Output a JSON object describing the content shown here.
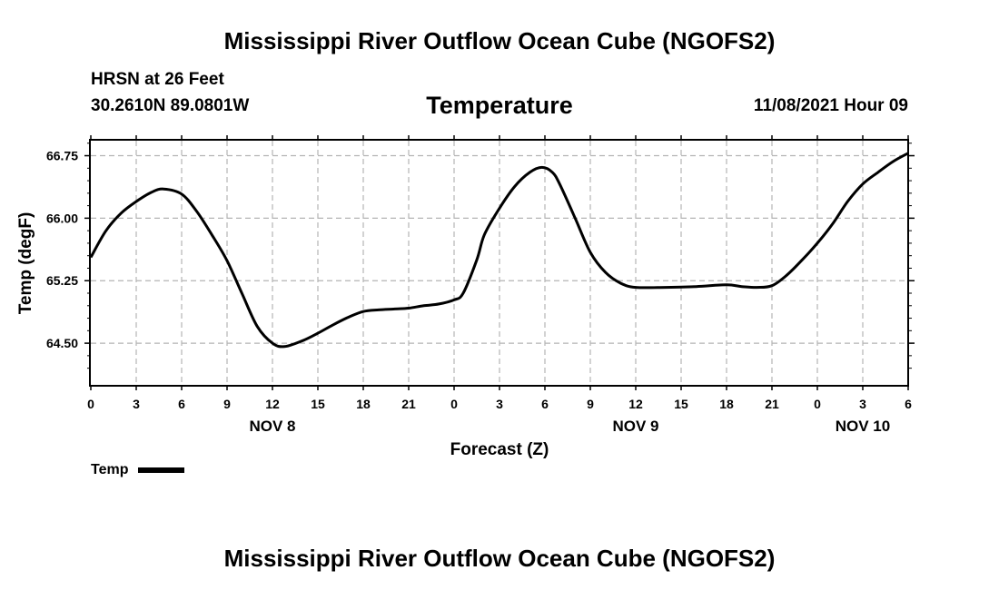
{
  "header": {
    "title": "Mississippi River Outflow Ocean Cube (NGOFS2)",
    "station_name": "HRSN at 26 Feet",
    "station_coords": "30.2610N  89.0801W",
    "variable": "Temperature",
    "run_time": "11/08/2021 Hour 09"
  },
  "footer": {
    "title": "Mississippi River Outflow Ocean Cube (NGOFS2)"
  },
  "legend": {
    "label": "Temp"
  },
  "colors": {
    "line": "#000000",
    "grid": "#b4b4b4"
  },
  "chart_data": {
    "type": "line",
    "title": "Temperature",
    "xlabel": "Forecast (Z)",
    "ylabel": "Temp (degF)",
    "xlim": [
      0,
      54
    ],
    "ylim": [
      64.0,
      66.93
    ],
    "grid": true,
    "yticks": [
      64.5,
      65.25,
      66.0,
      66.75
    ],
    "ytick_labels": [
      "64.50",
      "65.25",
      "66.00",
      "66.75"
    ],
    "xticks": [
      0,
      3,
      6,
      9,
      12,
      15,
      18,
      21,
      24,
      27,
      30,
      33,
      36,
      39,
      42,
      45,
      48,
      51,
      54
    ],
    "xtick_labels": [
      "0",
      "3",
      "6",
      "9",
      "12",
      "15",
      "18",
      "21",
      "0",
      "3",
      "6",
      "9",
      "12",
      "15",
      "18",
      "21",
      "0",
      "3",
      "6"
    ],
    "date_labels": [
      {
        "x": 12,
        "label": "NOV 8"
      },
      {
        "x": 36,
        "label": "NOV 9"
      },
      {
        "x": 51,
        "label": "NOV 10"
      }
    ],
    "series": [
      {
        "name": "Temp",
        "x": [
          0,
          1,
          2,
          3,
          4,
          4.8,
          6,
          7,
          8,
          9,
          10,
          11,
          12,
          12.8,
          14,
          15,
          16,
          17,
          18,
          19,
          20,
          21,
          22,
          23,
          24,
          24.6,
          25.5,
          26,
          27,
          28,
          29,
          29.8,
          30.5,
          31,
          32,
          33,
          34,
          35,
          36,
          38,
          40,
          42,
          43,
          44,
          45,
          46,
          47,
          48,
          49,
          50,
          51,
          52,
          53,
          54
        ],
        "y": [
          65.53,
          65.85,
          66.06,
          66.2,
          66.31,
          66.35,
          66.29,
          66.08,
          65.8,
          65.49,
          65.09,
          64.7,
          64.5,
          64.46,
          64.53,
          64.62,
          64.72,
          64.81,
          64.88,
          64.9,
          64.91,
          64.92,
          64.95,
          64.97,
          65.02,
          65.1,
          65.5,
          65.8,
          66.12,
          66.38,
          66.55,
          66.61,
          66.55,
          66.4,
          66.0,
          65.59,
          65.35,
          65.22,
          65.17,
          65.17,
          65.18,
          65.2,
          65.18,
          65.17,
          65.19,
          65.32,
          65.5,
          65.7,
          65.93,
          66.2,
          66.41,
          66.55,
          66.68,
          66.78
        ]
      }
    ]
  }
}
